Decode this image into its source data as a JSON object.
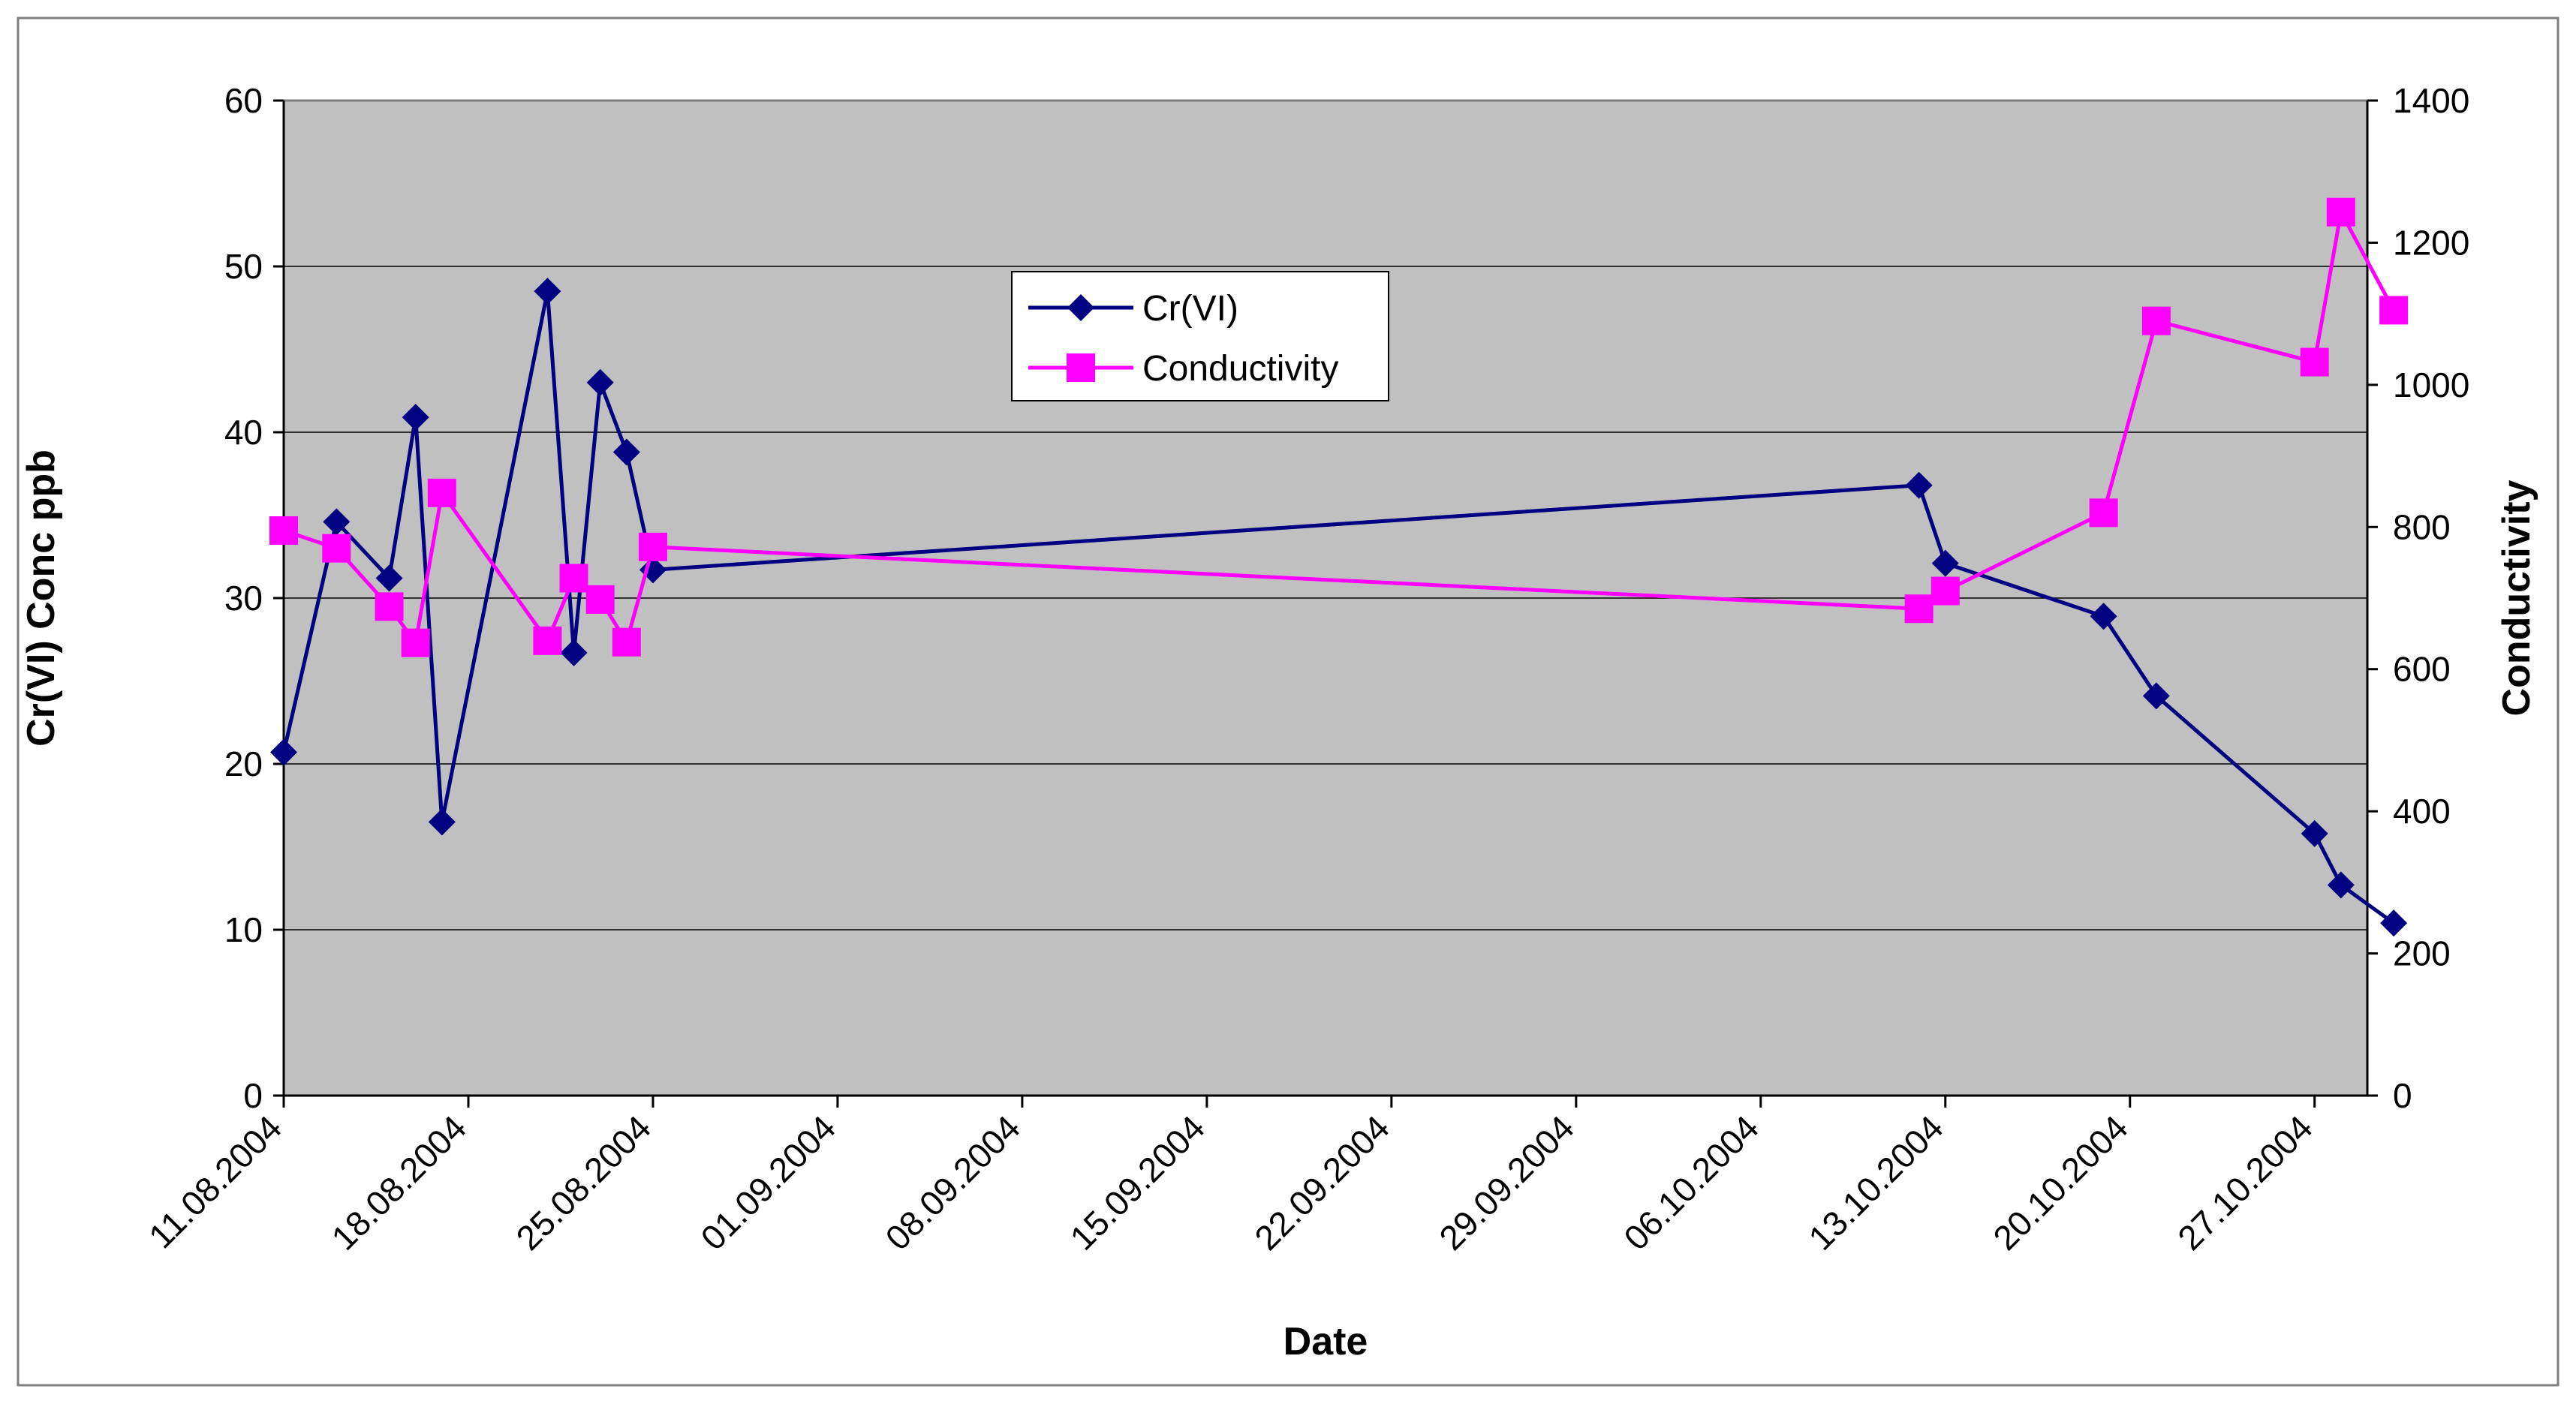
{
  "chart_data": {
    "type": "line",
    "xlabel": "Date",
    "ylabel_left": "Cr(VI) Conc ppb",
    "ylabel_right": "Conductivity",
    "ylim_left": [
      0,
      60
    ],
    "ylim_right": [
      0,
      1400
    ],
    "yticks_left": [
      "0",
      "10",
      "20",
      "30",
      "40",
      "50",
      "60"
    ],
    "yticks_right": [
      "0",
      "200",
      "400",
      "600",
      "800",
      "1000",
      "1200",
      "1400"
    ],
    "xlim": [
      "2004-08-11",
      "2004-10-29"
    ],
    "xticks": [
      "11.08.2004",
      "18.08.2004",
      "25.08.2004",
      "01.09.2004",
      "08.09.2004",
      "15.09.2004",
      "22.09.2004",
      "29.09.2004",
      "06.10.2004",
      "13.10.2004",
      "20.10.2004",
      "27.10.2004"
    ],
    "plot_background": "#c0c0c0",
    "grid": "horizontal",
    "legend_position": "upper-center",
    "series": [
      {
        "name": "Cr(VI)",
        "axis": "left",
        "color": "#000080",
        "marker": "diamond",
        "points": [
          {
            "x": "2004-08-11",
            "y": 20.7
          },
          {
            "x": "2004-08-13",
            "y": 34.6
          },
          {
            "x": "2004-08-15",
            "y": 31.2
          },
          {
            "x": "2004-08-16",
            "y": 40.9
          },
          {
            "x": "2004-08-17",
            "y": 16.5
          },
          {
            "x": "2004-08-21",
            "y": 48.5
          },
          {
            "x": "2004-08-22",
            "y": 26.7
          },
          {
            "x": "2004-08-23",
            "y": 43.0
          },
          {
            "x": "2004-08-24",
            "y": 38.8
          },
          {
            "x": "2004-08-25",
            "y": 31.7
          },
          {
            "x": "2004-10-12",
            "y": 36.8
          },
          {
            "x": "2004-10-13",
            "y": 32.1
          },
          {
            "x": "2004-10-19",
            "y": 28.9
          },
          {
            "x": "2004-10-21",
            "y": 24.1
          },
          {
            "x": "2004-10-27",
            "y": 15.8
          },
          {
            "x": "2004-10-28",
            "y": 12.7
          },
          {
            "x": "2004-10-30",
            "y": 10.4
          }
        ]
      },
      {
        "name": "Conductivity",
        "axis": "right",
        "color": "#ff00ff",
        "marker": "square",
        "points": [
          {
            "x": "2004-08-11",
            "y": 795
          },
          {
            "x": "2004-08-13",
            "y": 770
          },
          {
            "x": "2004-08-15",
            "y": 688
          },
          {
            "x": "2004-08-16",
            "y": 637
          },
          {
            "x": "2004-08-17",
            "y": 848
          },
          {
            "x": "2004-08-21",
            "y": 640
          },
          {
            "x": "2004-08-22",
            "y": 728
          },
          {
            "x": "2004-08-23",
            "y": 698
          },
          {
            "x": "2004-08-24",
            "y": 638
          },
          {
            "x": "2004-08-25",
            "y": 772
          },
          {
            "x": "2004-10-12",
            "y": 685
          },
          {
            "x": "2004-10-13",
            "y": 710
          },
          {
            "x": "2004-10-19",
            "y": 820
          },
          {
            "x": "2004-10-21",
            "y": 1090
          },
          {
            "x": "2004-10-27",
            "y": 1032
          },
          {
            "x": "2004-10-28",
            "y": 1243
          },
          {
            "x": "2004-10-30",
            "y": 1105
          }
        ]
      }
    ]
  }
}
